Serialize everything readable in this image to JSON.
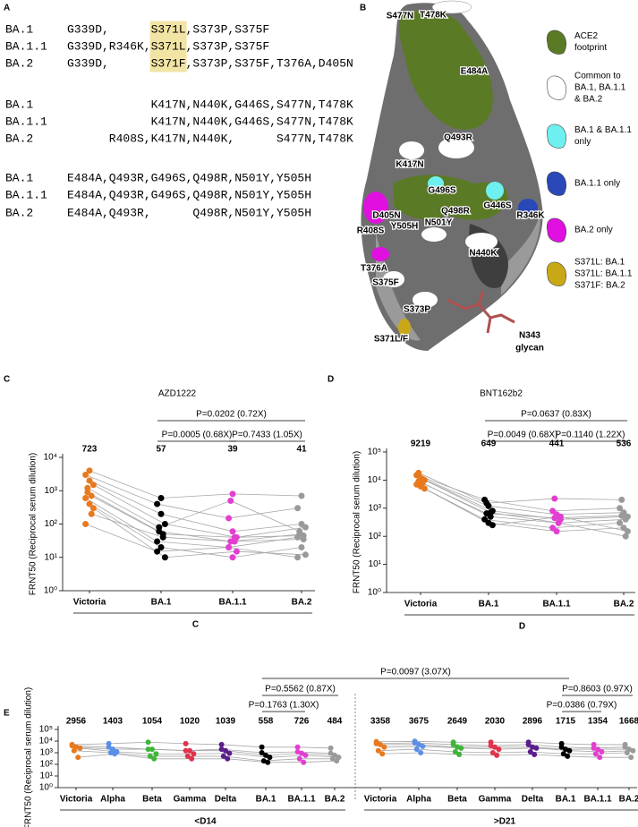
{
  "panel_a": {
    "label": "A",
    "blocks": [
      {
        "rows": [
          {
            "name": "BA.1",
            "cells": [
              {
                "text": "G339D,"
              },
              null,
              {
                "text": "S371L",
                "color": "#5ec4cc",
                "highlight": true
              },
              {
                "text": ",S373P,S375F"
              },
              null,
              null
            ]
          },
          {
            "name": "BA.1.1",
            "cells": [
              {
                "text": "G339D,"
              },
              {
                "text": "R346K,",
                "color": "#3a5db0"
              },
              {
                "text": "S371L",
                "color": "#5ec4cc",
                "highlight": true
              },
              {
                "text": ",S373P,S375F"
              },
              null,
              null
            ]
          },
          {
            "name": "BA.2",
            "cells": [
              {
                "text": "G339D,"
              },
              null,
              {
                "text": "S371F",
                "color": "#e020d0",
                "highlight": true
              },
              {
                "text": ",S373P,S375F,"
              },
              {
                "text": "T376A,",
                "color": "#e020d0"
              },
              {
                "text": "D405N",
                "color": "#e020d0"
              }
            ]
          }
        ]
      },
      {
        "rows": [
          {
            "name": "BA.1",
            "cells": [
              null,
              {
                "text": "K417N,N440K,"
              },
              {
                "text": "G446S",
                "color": "#5ec4cc"
              },
              {
                "text": ","
              },
              {
                "text": "S477N,T478K"
              }
            ]
          },
          {
            "name": "BA.1.1",
            "cells": [
              null,
              {
                "text": "K417N,N440K,"
              },
              {
                "text": "G446S",
                "color": "#5ec4cc"
              },
              {
                "text": ","
              },
              {
                "text": "S477N,T478K"
              }
            ]
          },
          {
            "name": "BA.2",
            "cells": [
              {
                "text": "R408S,",
                "color": "#e020d0"
              },
              {
                "text": "K417N,N440K,"
              },
              null,
              null,
              {
                "text": "S477N,T478K"
              }
            ]
          }
        ]
      },
      {
        "rows": [
          {
            "name": "BA.1",
            "cells": [
              {
                "text": "E484A,Q493R,"
              },
              {
                "text": "G496S",
                "color": "#5ec4cc"
              },
              {
                "text": ","
              },
              {
                "text": "Q498R,N501Y,Y505H"
              }
            ]
          },
          {
            "name": "BA.1.1",
            "cells": [
              {
                "text": "E484A,Q493R,"
              },
              {
                "text": "G496S",
                "color": "#5ec4cc"
              },
              {
                "text": ","
              },
              {
                "text": "Q498R,N501Y,Y505H"
              }
            ]
          },
          {
            "name": "BA.2",
            "cells": [
              {
                "text": "E484A,Q493R,"
              },
              null,
              null,
              {
                "text": "Q498R,N501Y,Y505H"
              }
            ]
          }
        ]
      }
    ]
  },
  "panel_b": {
    "label": "B",
    "residue_labels": [
      "S477N",
      "T478K",
      "E484A",
      "Q493R",
      "K417N",
      "G496S",
      "G446S",
      "Q498R",
      "D405N",
      "N501Y",
      "Y505H",
      "R408S",
      "R346K",
      "N440K",
      "T376A",
      "S375F",
      "S373P",
      "S371L/F"
    ],
    "glycan_label": [
      "N343",
      "glycan"
    ],
    "legend": [
      {
        "color": "#5b7a26",
        "lines": [
          "ACE2",
          "footprint"
        ]
      },
      {
        "color": "#ffffff",
        "lines": [
          "Common to",
          "BA.1, BA.1.1",
          "& BA.2"
        ]
      },
      {
        "color": "#6ff0f0",
        "lines": [
          "BA.1 & BA.1.1",
          "only"
        ]
      },
      {
        "color": "#2a48b8",
        "lines": [
          "BA.1.1 only"
        ]
      },
      {
        "color": "#e010e0",
        "lines": [
          "BA.2 only"
        ]
      },
      {
        "color": "#c9a818",
        "lines": [
          "S371L: BA.1",
          "S371L: BA.1.1",
          "S371F: BA.2"
        ]
      }
    ]
  },
  "chart_data": [
    {
      "type": "paired-dot",
      "label": "C",
      "title": "AZD1222",
      "ylabel": "FRNT50 (Reciprocal serum dilution)",
      "log_y": true,
      "ylim": [
        1,
        10000
      ],
      "yticks": [
        {
          "value": 1,
          "label": "10⁰"
        },
        {
          "value": 10,
          "label": "10¹"
        },
        {
          "value": 100,
          "label": "10²"
        },
        {
          "value": 1000,
          "label": "10³"
        },
        {
          "value": 10000,
          "label": "10⁴"
        }
      ],
      "categories": [
        "Victoria",
        "BA.1",
        "BA.1.1",
        "BA.2"
      ],
      "colors": [
        "#e8791e",
        "#000000",
        "#e23fd0",
        "#9a9a9a"
      ],
      "medians": [
        723,
        57,
        39,
        41
      ],
      "line_color": "#a8a8a8",
      "comparisons": [
        {
          "text": "P=0.0202 (0.72X)",
          "between": [
            1,
            3
          ]
        },
        {
          "text": "P=0.0005 (0.68X)",
          "between": [
            1,
            2
          ]
        },
        {
          "text": "P=0.7433 (1.05X)",
          "between": [
            2,
            3
          ]
        }
      ],
      "series": [
        {
          "values": [
            3000,
            400,
            150,
            300
          ]
        },
        {
          "values": [
            2000,
            200,
            60,
            100
          ]
        },
        {
          "values": [
            1500,
            100,
            40,
            80
          ]
        },
        {
          "values": [
            900,
            60,
            30,
            50
          ]
        },
        {
          "values": [
            700,
            50,
            40,
            45
          ]
        },
        {
          "values": [
            600,
            30,
            20,
            40
          ]
        },
        {
          "values": [
            400,
            20,
            10,
            20
          ]
        },
        {
          "values": [
            300,
            10,
            15,
            12
          ]
        },
        {
          "values": [
            1200,
            80,
            500,
            60
          ]
        },
        {
          "values": [
            200,
            40,
            30,
            35
          ]
        },
        {
          "values": [
            100,
            15,
            20,
            10
          ]
        },
        {
          "values": [
            4000,
            600,
            800,
            700
          ]
        }
      ]
    },
    {
      "type": "paired-dot",
      "label": "D",
      "title": "BNT162b2",
      "ylabel": "FRNT50 (Reciprocal serum dilution)",
      "log_y": true,
      "ylim": [
        1,
        100000
      ],
      "yticks": [
        {
          "value": 1,
          "label": "10⁰"
        },
        {
          "value": 10,
          "label": "10¹"
        },
        {
          "value": 100,
          "label": "10²"
        },
        {
          "value": 1000,
          "label": "10³"
        },
        {
          "value": 10000,
          "label": "10⁴"
        },
        {
          "value": 100000,
          "label": "10⁵"
        }
      ],
      "categories": [
        "Victoria",
        "BA.1",
        "BA.1.1",
        "BA.2"
      ],
      "colors": [
        "#e8791e",
        "#000000",
        "#e23fd0",
        "#9a9a9a"
      ],
      "medians": [
        9219,
        649,
        441,
        536
      ],
      "line_color": "#a8a8a8",
      "comparisons": [
        {
          "text": "P=0.0637 (0.83X)",
          "between": [
            1,
            3
          ]
        },
        {
          "text": "P=0.0049 (0.68X)",
          "between": [
            1,
            2
          ]
        },
        {
          "text": "P=0.1140 (1.22X)",
          "between": [
            2,
            3
          ]
        }
      ],
      "series": [
        {
          "values": [
            15000,
            2000,
            800,
            1000
          ]
        },
        {
          "values": [
            12000,
            1200,
            600,
            700
          ]
        },
        {
          "values": [
            10000,
            800,
            400,
            500
          ]
        },
        {
          "values": [
            9000,
            650,
            450,
            540
          ]
        },
        {
          "values": [
            8000,
            500,
            300,
            400
          ]
        },
        {
          "values": [
            7000,
            400,
            200,
            300
          ]
        },
        {
          "values": [
            6000,
            300,
            150,
            200
          ]
        },
        {
          "values": [
            5000,
            250,
            500,
            150
          ]
        },
        {
          "values": [
            18000,
            1500,
            2200,
            2000
          ]
        },
        {
          "values": [
            11000,
            700,
            300,
            100
          ]
        }
      ]
    },
    {
      "type": "paired-dot",
      "label": "E",
      "ylabel": "FRNT50 (Reciprocal serum dilution)",
      "log_y": true,
      "ylim": [
        1,
        100000
      ],
      "yticks": [
        {
          "value": 1,
          "label": "10⁰"
        },
        {
          "value": 10,
          "label": "10¹"
        },
        {
          "value": 100,
          "label": "10²"
        },
        {
          "value": 1000,
          "label": "10³"
        },
        {
          "value": 10000,
          "label": "10⁴"
        },
        {
          "value": 100000,
          "label": "10⁵"
        }
      ],
      "line_color": "#a8a8a8",
      "groups": [
        {
          "label": "<D14",
          "categories": [
            "Victoria",
            "Alpha",
            "Beta",
            "Gamma",
            "Delta",
            "BA.1",
            "BA.1.1",
            "BA.2"
          ],
          "colors": [
            "#e8791e",
            "#5b8fe6",
            "#3fb63a",
            "#e0334e",
            "#5a1e8c",
            "#000000",
            "#e23fd0",
            "#9a9a9a"
          ],
          "medians": [
            2956,
            1403,
            1054,
            1020,
            1039,
            558,
            726,
            484
          ],
          "series": [
            {
              "values": [
                5000,
                6000,
                8000,
                6000,
                5000,
                3000,
                3000,
                2500
              ]
            },
            {
              "values": [
                3000,
                2000,
                2000,
                1500,
                1500,
                600,
                900,
                600
              ]
            },
            {
              "values": [
                2500,
                1200,
                800,
                800,
                900,
                400,
                600,
                400
              ]
            },
            {
              "values": [
                1500,
                1000,
                500,
                500,
                500,
                200,
                300,
                300
              ]
            },
            {
              "values": [
                400,
                800,
                300,
                300,
                300,
                150,
                150,
                200
              ]
            },
            {
              "values": [
                4000,
                3000,
                2000,
                1500,
                2000,
                1000,
                1200,
                900
              ]
            }
          ]
        },
        {
          "label": ">D21",
          "categories": [
            "Victoria",
            "Alpha",
            "Beta",
            "Gamma",
            "Delta",
            "BA.1",
            "BA.1.1",
            "BA.2"
          ],
          "colors": [
            "#e8791e",
            "#5b8fe6",
            "#3fb63a",
            "#e0334e",
            "#5a1e8c",
            "#000000",
            "#e23fd0",
            "#9a9a9a"
          ],
          "medians": [
            3358,
            3675,
            2649,
            2030,
            2896,
            1715,
            1354,
            1668
          ],
          "series": [
            {
              "values": [
                9000,
                9500,
                8000,
                8000,
                8000,
                6000,
                5000,
                5000
              ]
            },
            {
              "values": [
                5000,
                5000,
                3000,
                3000,
                3000,
                2000,
                2000,
                2000
              ]
            },
            {
              "values": [
                3000,
                3500,
                2500,
                2000,
                2500,
                1500,
                1200,
                1500
              ]
            },
            {
              "values": [
                1500,
                2000,
                1200,
                1000,
                1200,
                800,
                800,
                1000
              ]
            },
            {
              "values": [
                800,
                1000,
                700,
                600,
                700,
                500,
                400,
                400
              ]
            },
            {
              "values": [
                6000,
                7000,
                5000,
                4000,
                5000,
                3000,
                2500,
                3000
              ]
            }
          ]
        }
      ],
      "comparisons": [
        {
          "text": "P=0.0097 (3.07X)",
          "between": [
            [
              0,
              5
            ],
            [
              1,
              5
            ]
          ]
        },
        {
          "text": "P=0.5562 (0.87X)",
          "between": [
            [
              0,
              5
            ],
            [
              0,
              7
            ]
          ]
        },
        {
          "text": "P=0.1763 (1.30X)",
          "between": [
            [
              0,
              5
            ],
            [
              0,
              6
            ]
          ]
        },
        {
          "text": "P=0.8603 (0.97X)",
          "between": [
            [
              1,
              5
            ],
            [
              1,
              7
            ]
          ]
        },
        {
          "text": "P=0.0386 (0.79X)",
          "between": [
            [
              1,
              5
            ],
            [
              1,
              6
            ]
          ]
        }
      ]
    }
  ]
}
